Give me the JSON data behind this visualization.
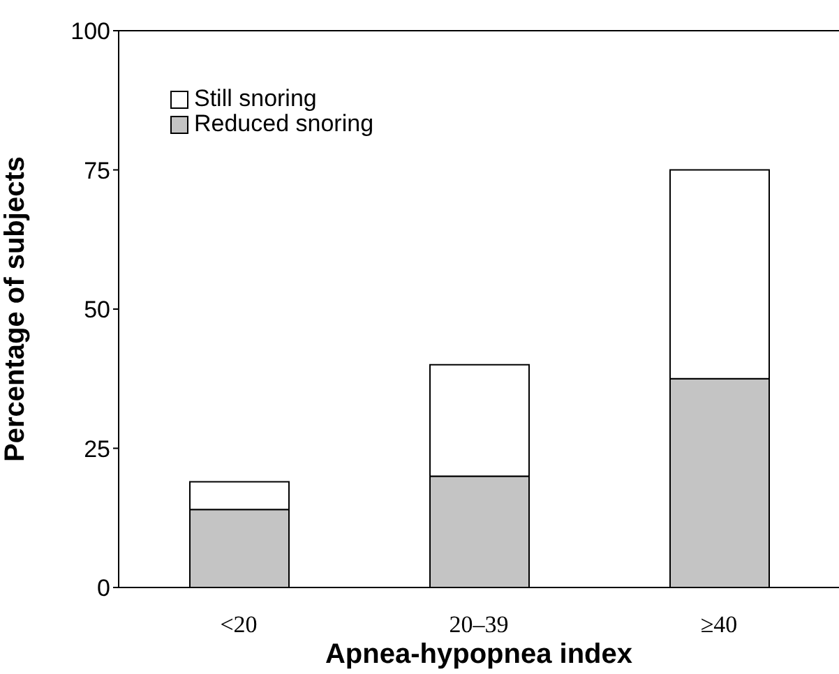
{
  "chart_data": {
    "type": "bar",
    "stacked": true,
    "xlabel": "Apnea-hypopnea index",
    "ylabel": "Percentage of subjects",
    "categories": [
      "<20",
      "20–39",
      "≥40"
    ],
    "series": [
      {
        "name": "Reduced snoring",
        "color": "#c4c4c4",
        "values": [
          14,
          20,
          37.5
        ]
      },
      {
        "name": "Still snoring",
        "color": "#ffffff",
        "values": [
          5,
          20,
          37.5
        ]
      }
    ],
    "ylim": [
      0,
      100
    ],
    "yticks": [
      0,
      25,
      50,
      75,
      100
    ],
    "grid": false,
    "legend": "top left"
  }
}
